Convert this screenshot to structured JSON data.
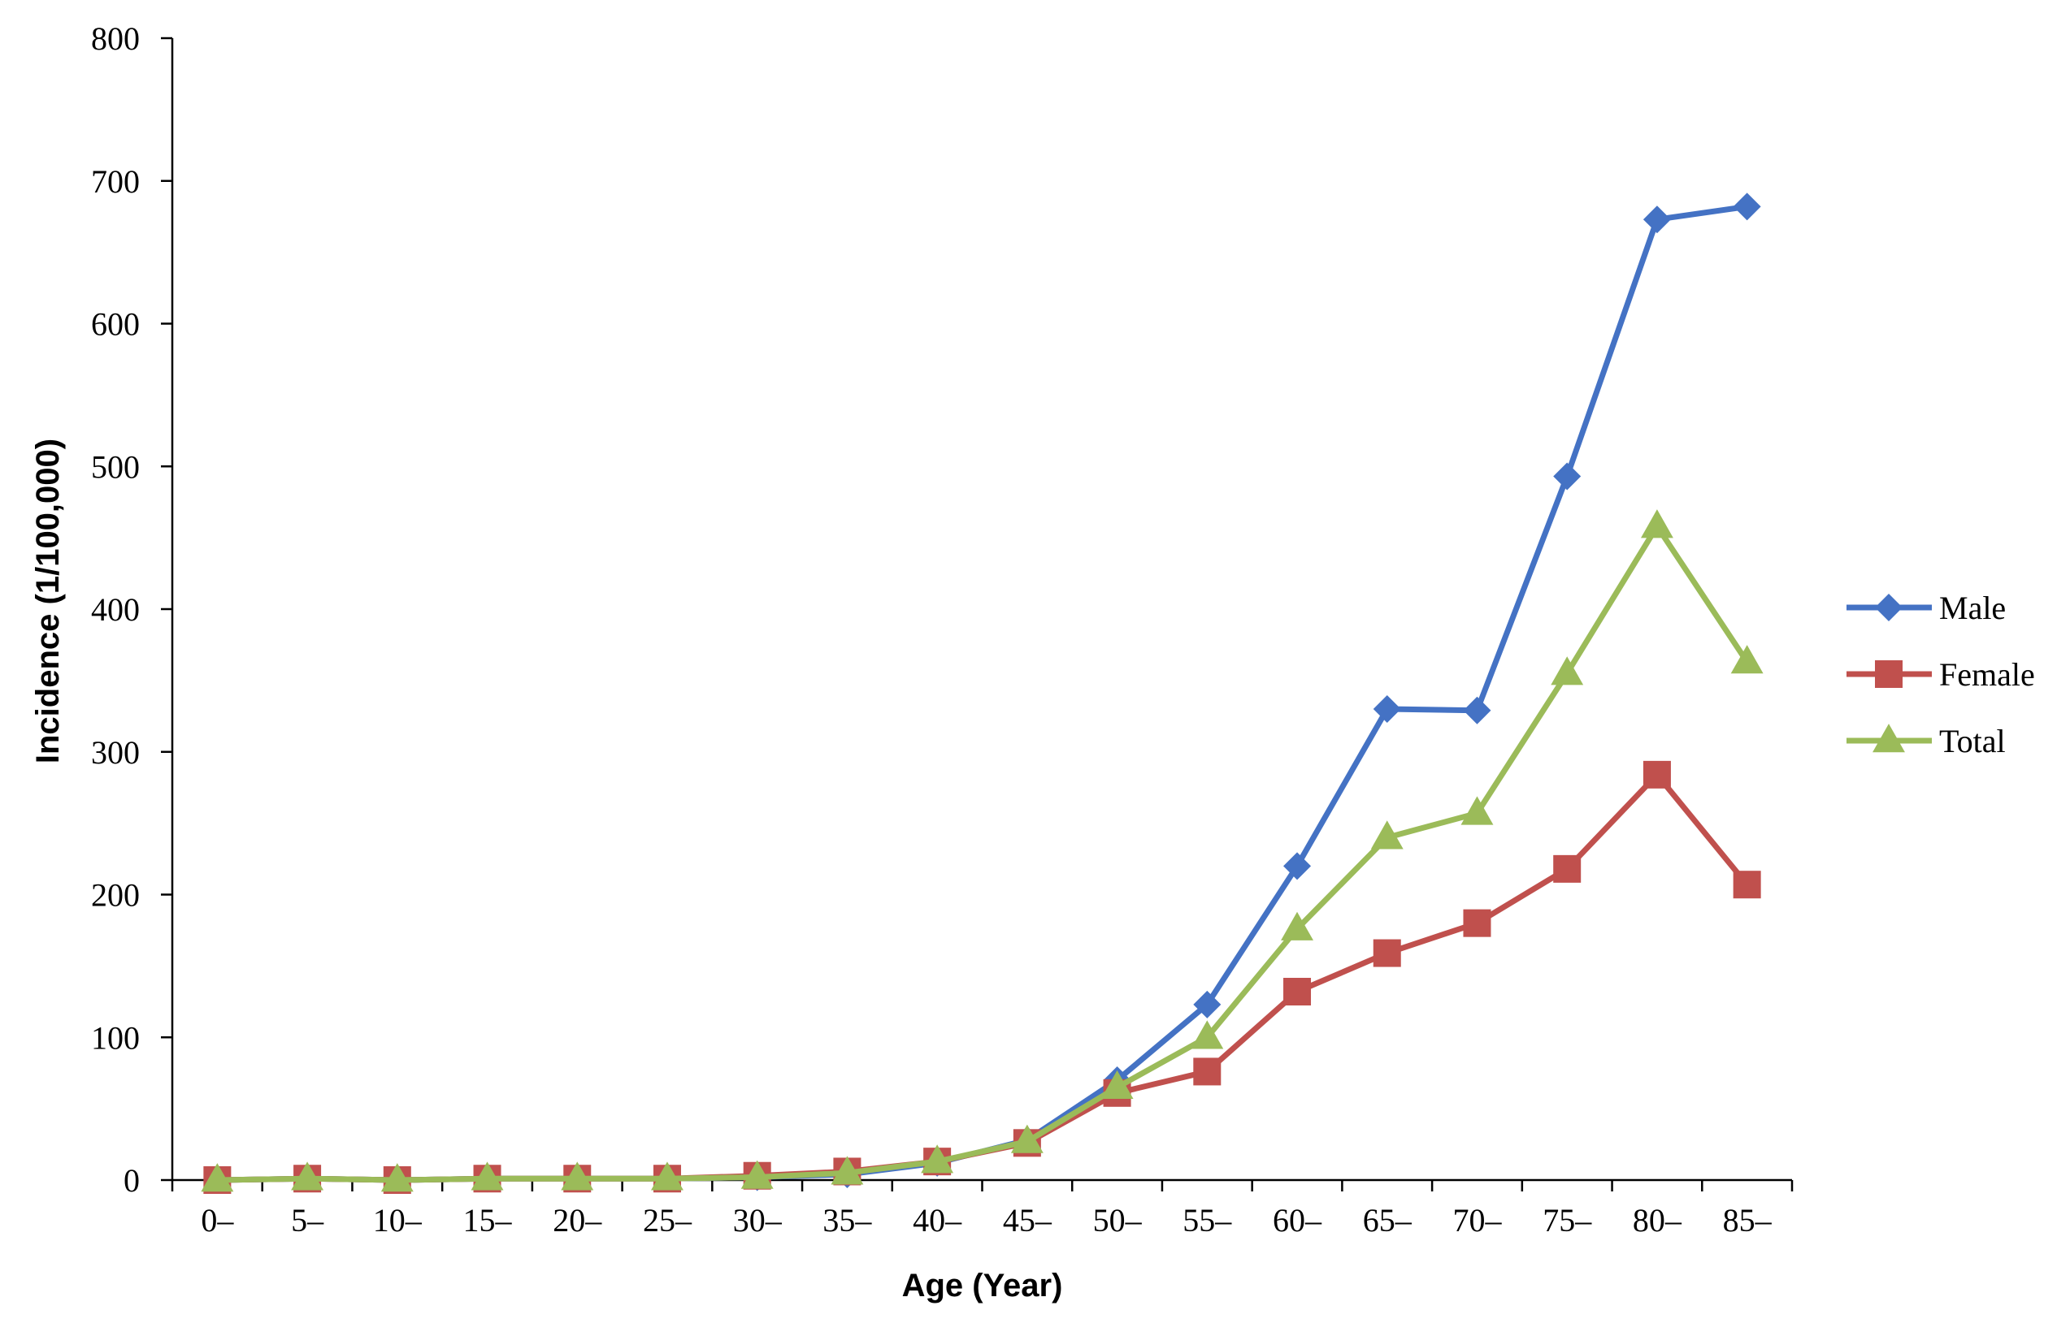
{
  "chart_data": {
    "type": "line",
    "title": "",
    "xlabel": "Age (Year)",
    "ylabel": "Incidence (1/100,000)",
    "categories": [
      "0–",
      "5–",
      "10–",
      "15–",
      "20–",
      "25–",
      "30–",
      "35–",
      "40–",
      "45–",
      "50–",
      "55–",
      "60–",
      "65–",
      "70–",
      "75–",
      "80–",
      "85–"
    ],
    "ylim": [
      0,
      800
    ],
    "yticks": [
      "0",
      "100",
      "200",
      "300",
      "400",
      "500",
      "600",
      "700",
      "800"
    ],
    "grid": false,
    "legend_position": "right",
    "series": [
      {
        "name": "Male",
        "color": "#4472C4",
        "marker": "diamond",
        "values": [
          0,
          1,
          0,
          1,
          1,
          1,
          2,
          4,
          12,
          28,
          70,
          123,
          220,
          330,
          329,
          493,
          673,
          682
        ]
      },
      {
        "name": "Female",
        "color": "#C0504D",
        "marker": "square",
        "values": [
          0,
          1,
          0,
          1,
          1,
          1,
          3,
          6,
          13,
          26,
          61,
          76,
          132,
          159,
          180,
          218,
          284,
          207
        ]
      },
      {
        "name": "Total",
        "color": "#9BBB59",
        "marker": "triangle",
        "values": [
          0,
          1,
          0,
          1,
          1,
          1,
          2,
          5,
          13,
          27,
          65,
          100,
          176,
          240,
          257,
          355,
          458,
          363
        ]
      }
    ]
  }
}
